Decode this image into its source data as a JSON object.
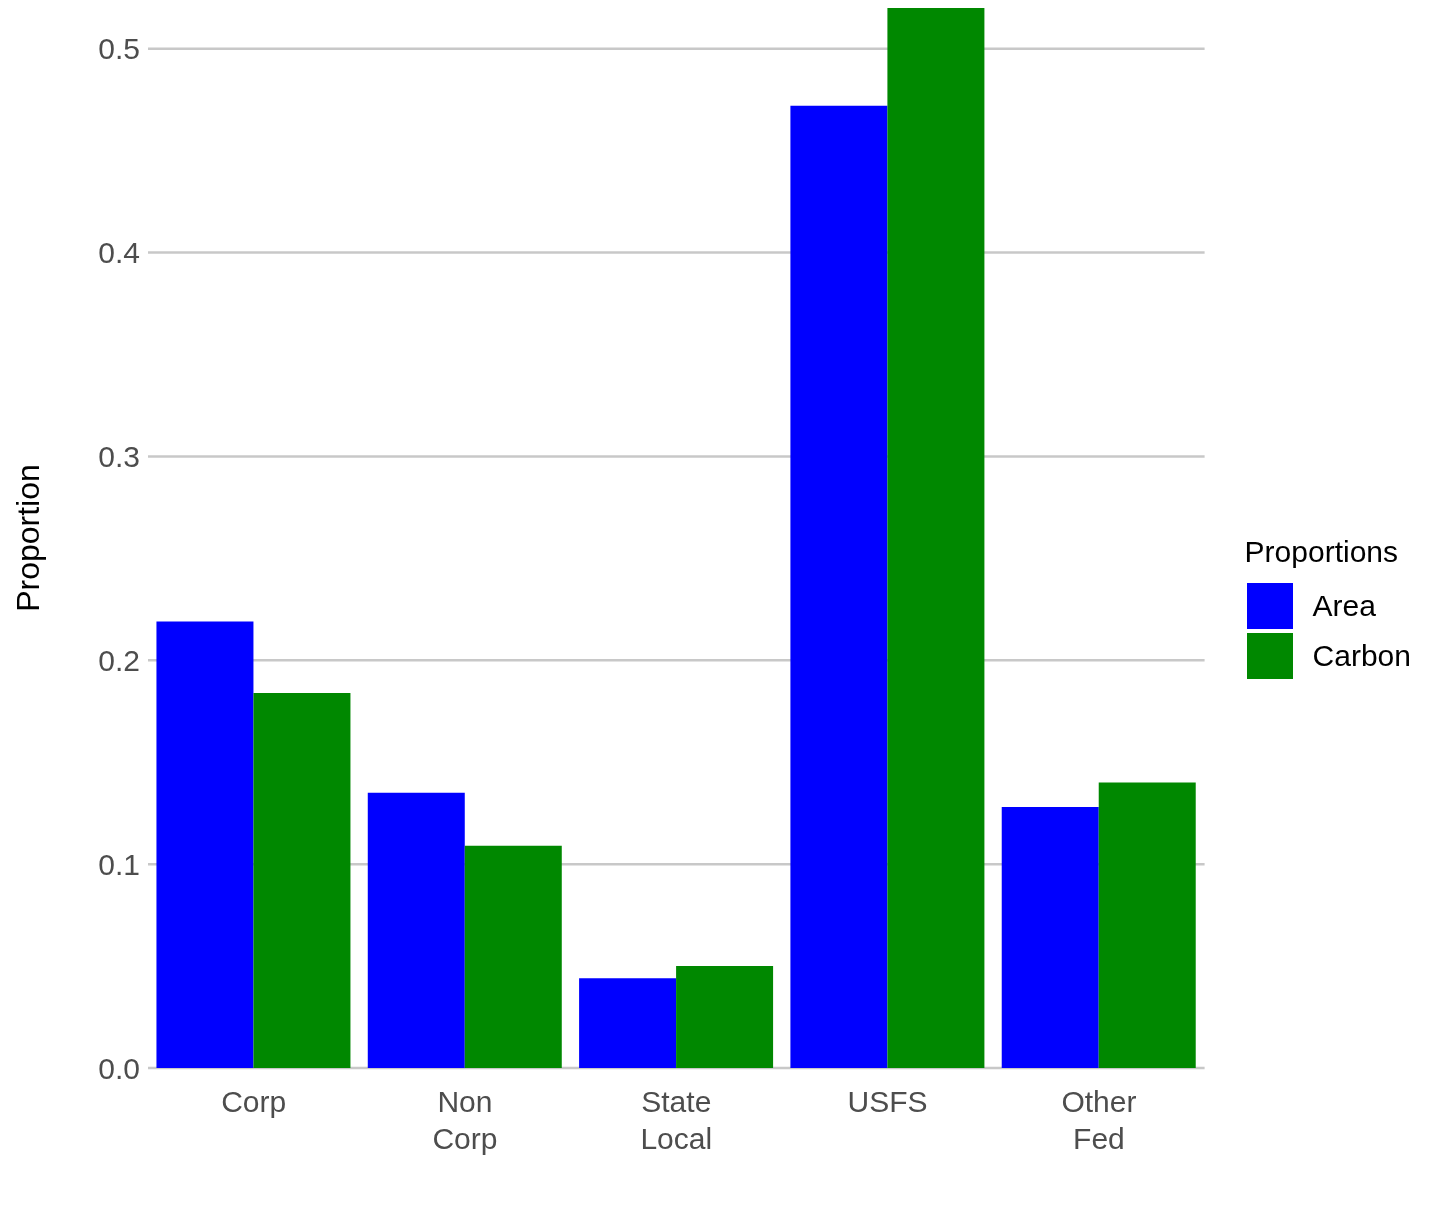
{
  "chart_data": {
    "type": "bar",
    "ylabel": "Proportion",
    "legend_title": "Proportions",
    "categories": [
      "Corp",
      "Non Corp",
      "State Local",
      "USFS",
      "Other Fed"
    ],
    "series": [
      {
        "name": "Area",
        "color": "#0000ff",
        "values": [
          0.219,
          0.135,
          0.044,
          0.472,
          0.128
        ]
      },
      {
        "name": "Carbon",
        "color": "#008800",
        "values": [
          0.184,
          0.109,
          0.05,
          0.52,
          0.14
        ]
      }
    ],
    "ylim": [
      0,
      0.52
    ],
    "yticks": [
      {
        "value": 0,
        "label": "0.0"
      },
      0.1,
      0.2,
      0.3,
      0.4,
      0.5
    ],
    "grid": "y",
    "legend": "right"
  }
}
